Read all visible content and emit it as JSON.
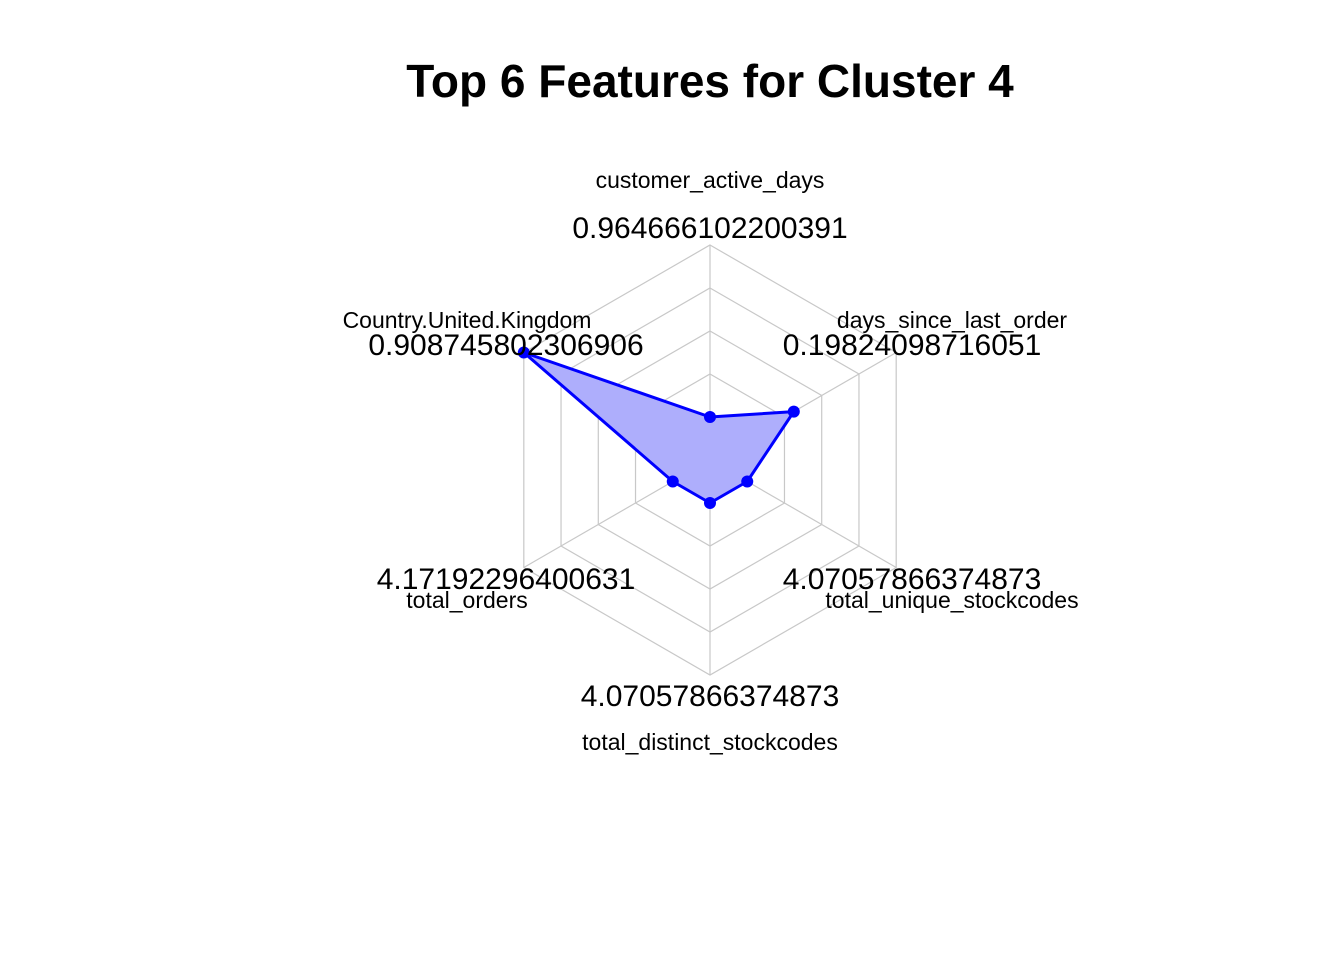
{
  "chart_data": {
    "type": "radar",
    "title": "Top 6 Features for Cluster 4",
    "axes": [
      {
        "name": "customer_active_days",
        "max_label": "0.964666102200391",
        "value": 0.2
      },
      {
        "name": "days_since_last_order",
        "max_label": "0.19824098716051",
        "value": 0.45
      },
      {
        "name": "total_unique_stockcodes",
        "max_label": "4.07057866374873",
        "value": 0.2
      },
      {
        "name": "total_distinct_stockcodes",
        "max_label": "4.07057866374873",
        "value": 0.2
      },
      {
        "name": "total_orders",
        "max_label": "4.17192296400631",
        "value": 0.2
      },
      {
        "name": "Country.United.Kingdom",
        "max_label": "0.908745802306906",
        "value": 1.0
      }
    ],
    "rings": 5,
    "range": [
      0,
      1
    ],
    "series_color": "#0000ff",
    "fill_color": "#aeaefc"
  }
}
